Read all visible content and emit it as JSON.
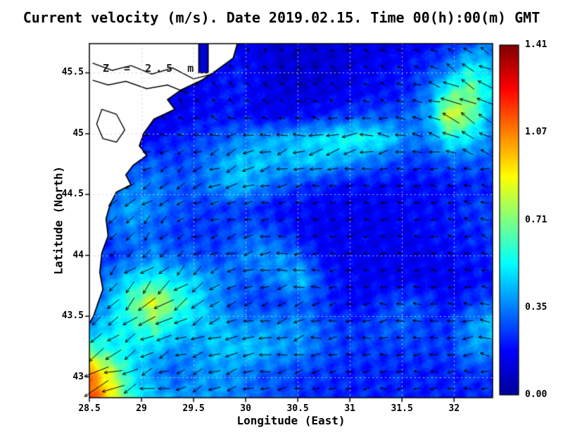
{
  "colors": {
    "land": "#ffffff",
    "coast": "#000000",
    "arrow": "#000000",
    "grid": "rgba(205,205,205,0.9)"
  },
  "chart_data": {
    "type": "heatmap",
    "title": "Current velocity (m/s). Date 2019.02.15. Time 00(h):00(m) GMT",
    "annotation": "Z = 2.5 m",
    "xlabel": "Longitude (East)",
    "ylabel": "Latitude (North)",
    "xlim": [
      28.5,
      32.37
    ],
    "ylim": [
      42.83,
      45.74
    ],
    "xtick_labels": [
      "28.5",
      "29",
      "29.5",
      "30",
      "30.5",
      "31",
      "31.5",
      "32"
    ],
    "ytick_labels": [
      "43",
      "43.5",
      "44",
      "44.5",
      "45",
      "45.5"
    ],
    "grid_on": true,
    "colorbar": {
      "min": 0,
      "max": 1.41,
      "tick_labels": [
        "0.00",
        "0.35",
        "0.71",
        "1.07",
        "1.41"
      ],
      "colormap": "jet",
      "position": "right"
    },
    "speed_grid": {
      "nx": 20,
      "ny": 16,
      "lon_range": [
        28.5,
        32.37
      ],
      "lat_range_top_to_bottom": [
        45.74,
        42.83
      ],
      "units": "m/s",
      "values": [
        [
          0.1,
          0.1,
          0.1,
          0.1,
          0.1,
          0.12,
          0.15,
          0.15,
          0.12,
          0.1,
          0.1,
          0.1,
          0.12,
          0.12,
          0.12,
          0.15,
          0.18,
          0.22,
          0.3,
          0.35
        ],
        [
          0.1,
          0.1,
          0.1,
          0.1,
          0.1,
          0.12,
          0.18,
          0.2,
          0.15,
          0.1,
          0.1,
          0.1,
          0.12,
          0.15,
          0.18,
          0.2,
          0.25,
          0.35,
          0.55,
          0.45
        ],
        [
          0.1,
          0.1,
          0.1,
          0.1,
          0.12,
          0.15,
          0.18,
          0.22,
          0.15,
          0.12,
          0.1,
          0.12,
          0.15,
          0.18,
          0.18,
          0.22,
          0.35,
          0.6,
          0.7,
          0.5
        ],
        [
          0.1,
          0.1,
          0.1,
          0.12,
          0.15,
          0.18,
          0.2,
          0.2,
          0.15,
          0.15,
          0.18,
          0.2,
          0.25,
          0.28,
          0.28,
          0.3,
          0.4,
          0.85,
          0.7,
          0.4
        ],
        [
          0.1,
          0.1,
          0.12,
          0.18,
          0.22,
          0.25,
          0.28,
          0.35,
          0.4,
          0.42,
          0.45,
          0.5,
          0.55,
          0.55,
          0.5,
          0.35,
          0.35,
          0.55,
          0.5,
          0.35
        ],
        [
          0.1,
          0.15,
          0.25,
          0.3,
          0.25,
          0.3,
          0.38,
          0.45,
          0.45,
          0.42,
          0.45,
          0.45,
          0.4,
          0.35,
          0.3,
          0.25,
          0.25,
          0.3,
          0.3,
          0.28
        ],
        [
          0.12,
          0.28,
          0.35,
          0.35,
          0.3,
          0.3,
          0.38,
          0.45,
          0.38,
          0.3,
          0.25,
          0.22,
          0.18,
          0.18,
          0.18,
          0.18,
          0.18,
          0.2,
          0.22,
          0.22
        ],
        [
          0.1,
          0.35,
          0.42,
          0.35,
          0.3,
          0.25,
          0.25,
          0.25,
          0.22,
          0.18,
          0.18,
          0.15,
          0.15,
          0.15,
          0.15,
          0.18,
          0.18,
          0.2,
          0.25,
          0.28
        ],
        [
          0.1,
          0.3,
          0.35,
          0.3,
          0.25,
          0.25,
          0.25,
          0.3,
          0.3,
          0.25,
          0.18,
          0.15,
          0.15,
          0.15,
          0.15,
          0.15,
          0.18,
          0.2,
          0.22,
          0.25
        ],
        [
          0.18,
          0.25,
          0.3,
          0.38,
          0.3,
          0.3,
          0.25,
          0.35,
          0.38,
          0.38,
          0.3,
          0.18,
          0.15,
          0.15,
          0.15,
          0.15,
          0.15,
          0.18,
          0.2,
          0.22
        ],
        [
          0.25,
          0.38,
          0.5,
          0.55,
          0.5,
          0.45,
          0.38,
          0.3,
          0.3,
          0.38,
          0.45,
          0.25,
          0.18,
          0.15,
          0.15,
          0.15,
          0.15,
          0.15,
          0.18,
          0.2
        ],
        [
          0.3,
          0.45,
          0.65,
          0.85,
          0.65,
          0.5,
          0.38,
          0.3,
          0.25,
          0.25,
          0.3,
          0.25,
          0.18,
          0.18,
          0.25,
          0.3,
          0.25,
          0.18,
          0.25,
          0.3
        ],
        [
          0.38,
          0.5,
          0.55,
          0.65,
          0.5,
          0.45,
          0.45,
          0.38,
          0.38,
          0.38,
          0.38,
          0.3,
          0.25,
          0.25,
          0.3,
          0.3,
          0.25,
          0.25,
          0.38,
          0.45
        ],
        [
          0.65,
          0.55,
          0.5,
          0.45,
          0.38,
          0.38,
          0.45,
          0.45,
          0.45,
          0.38,
          0.38,
          0.3,
          0.25,
          0.25,
          0.25,
          0.25,
          0.25,
          0.25,
          0.38,
          0.38
        ],
        [
          1.05,
          0.8,
          0.5,
          0.38,
          0.3,
          0.38,
          0.38,
          0.38,
          0.3,
          0.3,
          0.25,
          0.25,
          0.22,
          0.22,
          0.22,
          0.22,
          0.22,
          0.22,
          0.25,
          0.25
        ],
        [
          1.15,
          0.9,
          0.55,
          0.45,
          0.38,
          0.38,
          0.38,
          0.35,
          0.3,
          0.28,
          0.25,
          0.22,
          0.22,
          0.22,
          0.22,
          0.22,
          0.22,
          0.22,
          0.22,
          0.22
        ]
      ]
    },
    "direction_grid": [
      [
        90,
        95,
        100,
        110,
        120,
        130,
        140,
        150,
        155,
        160
      ],
      [
        100,
        105,
        115,
        125,
        135,
        145,
        155,
        160,
        150,
        140
      ],
      [
        185,
        190,
        198,
        200,
        196,
        192,
        188,
        182,
        172,
        162
      ],
      [
        212,
        214,
        208,
        200,
        194,
        190,
        186,
        180,
        176,
        170
      ],
      [
        238,
        228,
        218,
        202,
        192,
        186,
        182,
        176,
        172,
        166
      ],
      [
        228,
        222,
        214,
        204,
        196,
        190,
        186,
        180,
        176,
        172
      ],
      [
        212,
        208,
        204,
        200,
        195,
        190,
        186,
        182,
        178,
        175
      ],
      [
        200,
        198,
        196,
        194,
        190,
        188,
        185,
        182,
        180,
        178
      ]
    ],
    "coastline": [
      [
        29.92,
        45.74
      ],
      [
        29.88,
        45.62
      ],
      [
        29.72,
        45.52
      ],
      [
        29.58,
        45.44
      ],
      [
        29.38,
        45.36
      ],
      [
        29.25,
        45.28
      ],
      [
        29.32,
        45.2
      ],
      [
        29.12,
        45.12
      ],
      [
        29.02,
        45.0
      ],
      [
        28.98,
        44.9
      ],
      [
        29.05,
        44.82
      ],
      [
        28.92,
        44.74
      ],
      [
        28.85,
        44.66
      ],
      [
        28.9,
        44.58
      ],
      [
        28.76,
        44.52
      ],
      [
        28.7,
        44.42
      ],
      [
        28.66,
        44.3
      ],
      [
        28.68,
        44.16
      ],
      [
        28.62,
        44.02
      ],
      [
        28.6,
        43.86
      ],
      [
        28.63,
        43.72
      ],
      [
        28.58,
        43.6
      ],
      [
        28.54,
        43.5
      ],
      [
        28.5,
        43.44
      ]
    ],
    "inlet": {
      "lon_min": 29.55,
      "lon_max": 29.64,
      "lat_min": 45.5,
      "lat_max": 45.74
    },
    "delta_branches": [
      [
        [
          28.53,
          45.58
        ],
        [
          28.72,
          45.52
        ],
        [
          28.9,
          45.56
        ],
        [
          29.1,
          45.49
        ],
        [
          29.3,
          45.54
        ],
        [
          29.5,
          45.45
        ],
        [
          29.68,
          45.49
        ]
      ],
      [
        [
          28.53,
          45.44
        ],
        [
          28.68,
          45.4
        ],
        [
          28.85,
          45.43
        ],
        [
          29.05,
          45.37
        ],
        [
          29.25,
          45.4
        ],
        [
          29.45,
          45.33
        ]
      ]
    ],
    "lagoon": [
      [
        28.62,
        45.2
      ],
      [
        28.76,
        45.16
      ],
      [
        28.84,
        45.03
      ],
      [
        28.76,
        44.93
      ],
      [
        28.63,
        44.96
      ],
      [
        28.57,
        45.08
      ]
    ]
  }
}
